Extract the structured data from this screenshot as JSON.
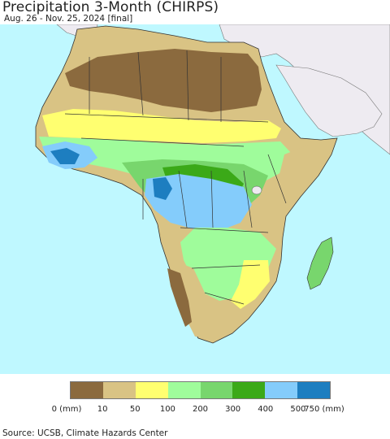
{
  "header": {
    "title": "Precipitation 3-Month (CHIRPS)",
    "subtitle": "Aug. 26 - Nov. 25, 2024 [final]"
  },
  "legend": {
    "colors": [
      "#8b6a3e",
      "#d9c384",
      "#ffff70",
      "#9ffc9b",
      "#78d66d",
      "#3ba918",
      "#84ccfb",
      "#1d7ec0"
    ],
    "tick_labels": [
      "0 (mm)",
      "10",
      "50",
      "100",
      "200",
      "300",
      "400",
      "500",
      "750 (mm)"
    ]
  },
  "footer": {
    "source": "Source: UCSB, Climate Hazards Center"
  },
  "colors": {
    "ocean": "#bff8ff",
    "land_other": "#eeebf1",
    "borders": "#333333"
  }
}
